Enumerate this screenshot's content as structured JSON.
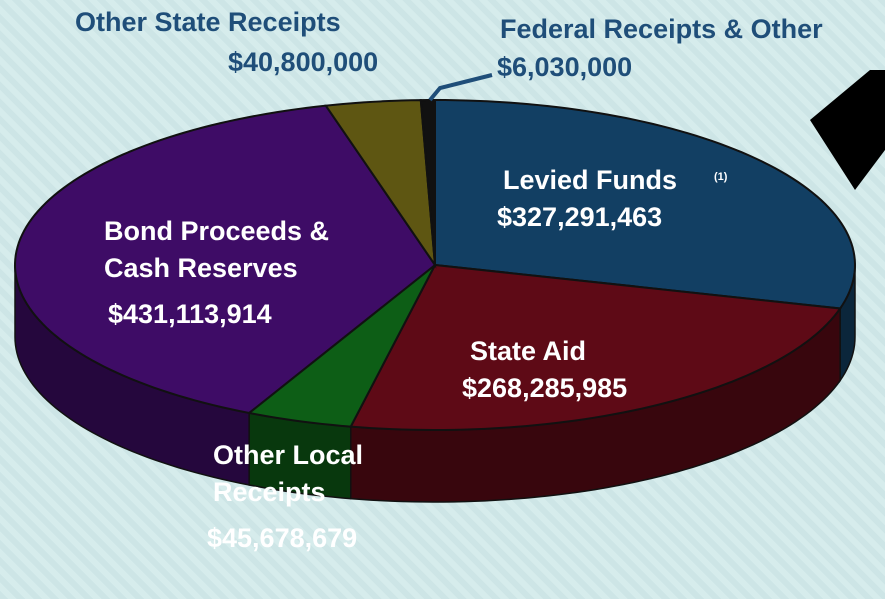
{
  "chart_data": {
    "type": "pie3d",
    "categories": [
      "Levied Funds",
      "State Aid",
      "Other Local Receipts",
      "Bond Proceeds & Cash Reserves",
      "Other State Receipts",
      "Federal Receipts & Other"
    ],
    "values": [
      327291463,
      268285985,
      45678679,
      431113914,
      40800000,
      6030000
    ],
    "value_labels": [
      "$327,291,463",
      "$268,285,985",
      "$45,678,679",
      "$431,113,914",
      "$40,800,000",
      "$6,030,000"
    ],
    "colors": [
      "#123f63",
      "#5e0a16",
      "#0d5e16",
      "#3e0c66",
      "#5e5612",
      "#111111"
    ],
    "annotations": [
      "(1)"
    ]
  }
}
